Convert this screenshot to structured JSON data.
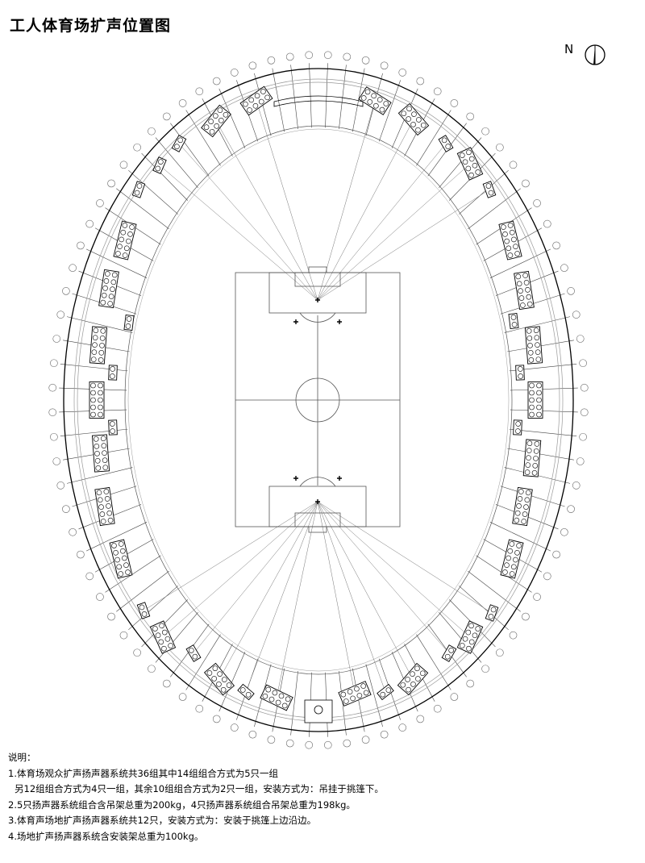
{
  "title": "工人体育场扩声位置图",
  "north_label": "N",
  "notes": {
    "heading": "说明：",
    "lines": [
      "1.体育场观众扩声扬声器系统共36组其中14组组合方式为5只一组",
      "另12组组合方式为4只一组，其余10组组合方式为2只一组，安装方式为：吊挂于挑篷下。",
      "2.5只扬声器系统组合含吊架总重为200kg，4只扬声器系统组合吊架总重为198kg。",
      "3.体育声场地扩声扬声器系统共12只，安装方式为：安装于挑篷上边沿边。",
      "4.场地扩声扬声器系统含安装架总重为100kg。"
    ]
  },
  "colors": {
    "line": "#000000",
    "gray_line": "#888888"
  },
  "icons": {
    "north_arrow": "north-arrow-icon",
    "speaker": "speaker-group-icon"
  }
}
